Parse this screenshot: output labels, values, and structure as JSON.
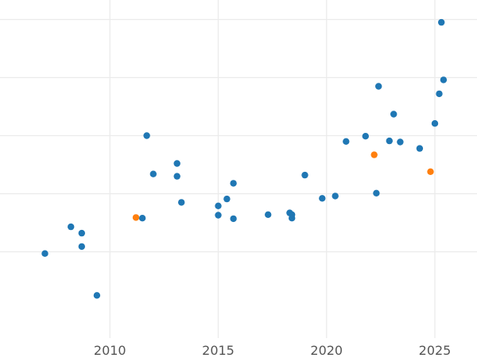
{
  "chart_data": {
    "type": "scatter",
    "title": "",
    "xlabel": "",
    "ylabel": "",
    "xlim": [
      2005,
      2027
    ],
    "ylim": [
      -0.5,
      5.5
    ],
    "grid": true,
    "x_ticks": [
      2010,
      2015,
      2020,
      2025
    ],
    "x_tick_labels": [
      "2010",
      "2015",
      "2020",
      "2025"
    ],
    "y_gridlines": [
      1,
      2,
      3,
      4,
      5
    ],
    "colors": {
      "blue": "#1f77b4",
      "orange": "#ff7f0e"
    },
    "series": [
      {
        "color": "#1f77b4",
        "x": [
          2007.0,
          2008.2,
          2008.7,
          2008.7,
          2009.4,
          2011.5,
          2011.7,
          2012.0,
          2013.1,
          2013.1,
          2013.3,
          2015.0,
          2015.0,
          2015.4,
          2015.7,
          2015.7,
          2017.3,
          2018.3,
          2018.4,
          2018.4,
          2019.0,
          2019.8,
          2020.4,
          2020.9,
          2021.8,
          2022.3,
          2022.4,
          2022.9,
          2023.1,
          2023.4,
          2024.3,
          2025.0,
          2025.2,
          2025.3,
          2025.4
        ],
        "y": [
          0.97,
          1.43,
          1.09,
          1.32,
          0.25,
          1.58,
          3.0,
          2.34,
          2.52,
          2.3,
          1.85,
          1.79,
          1.63,
          1.91,
          1.57,
          2.18,
          1.64,
          1.67,
          1.58,
          1.64,
          2.32,
          1.92,
          1.96,
          2.9,
          2.99,
          2.01,
          3.85,
          2.91,
          3.37,
          2.89,
          2.78,
          3.21,
          3.72,
          4.95,
          3.96
        ]
      },
      {
        "color": "#ff7f0e",
        "x": [
          2011.2,
          2022.2,
          2024.8
        ],
        "y": [
          1.59,
          2.67,
          2.38
        ]
      }
    ]
  }
}
